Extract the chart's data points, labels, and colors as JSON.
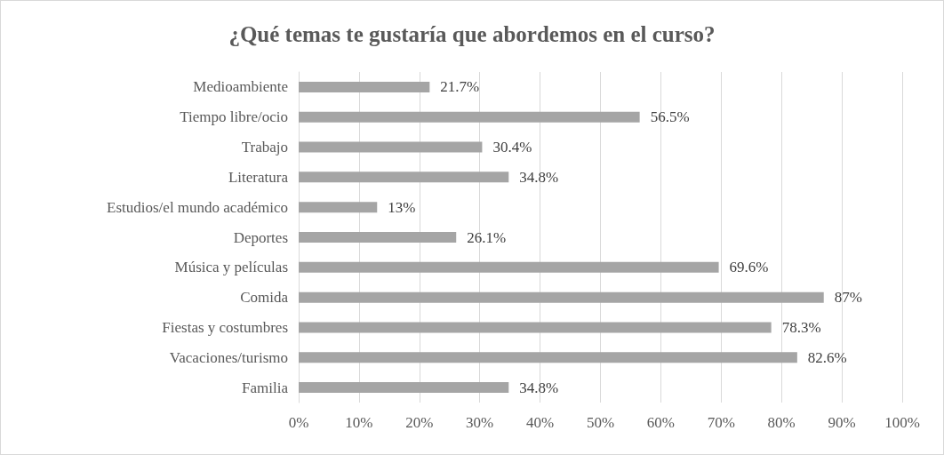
{
  "chart_data": {
    "type": "bar",
    "orientation": "horizontal",
    "title": "¿Qué temas te gustaría que abordemos en el curso?",
    "categories": [
      "Medioambiente",
      "Tiempo libre/ocio",
      "Trabajo",
      "Literatura",
      "Estudios/el mundo académico",
      "Deportes",
      "Música y películas",
      "Comida",
      "Fiestas y costumbres",
      "Vacaciones/turismo",
      "Familia"
    ],
    "values": [
      21.7,
      56.5,
      30.4,
      34.8,
      13,
      26.1,
      69.6,
      87,
      78.3,
      82.6,
      34.8
    ],
    "value_labels": [
      "21.7%",
      "56.5%",
      "30.4%",
      "34.8%",
      "13%",
      "26.1%",
      "69.6%",
      "87%",
      "78.3%",
      "82.6%",
      "34.8%"
    ],
    "color": "#a5a5a5",
    "xlim": [
      0,
      100
    ],
    "xticks": [
      {
        "value": 0,
        "label": "0%"
      },
      {
        "value": 10,
        "label": "10%"
      },
      {
        "value": 20,
        "label": "20%"
      },
      {
        "value": 30,
        "label": "30%"
      },
      {
        "value": 40,
        "label": "40%"
      },
      {
        "value": 50,
        "label": "50%"
      },
      {
        "value": 60,
        "label": "60%"
      },
      {
        "value": 70,
        "label": "70%"
      },
      {
        "value": 80,
        "label": "80%"
      },
      {
        "value": 90,
        "label": "90%"
      },
      {
        "value": 100,
        "label": "100%"
      }
    ],
    "grid": "x"
  }
}
